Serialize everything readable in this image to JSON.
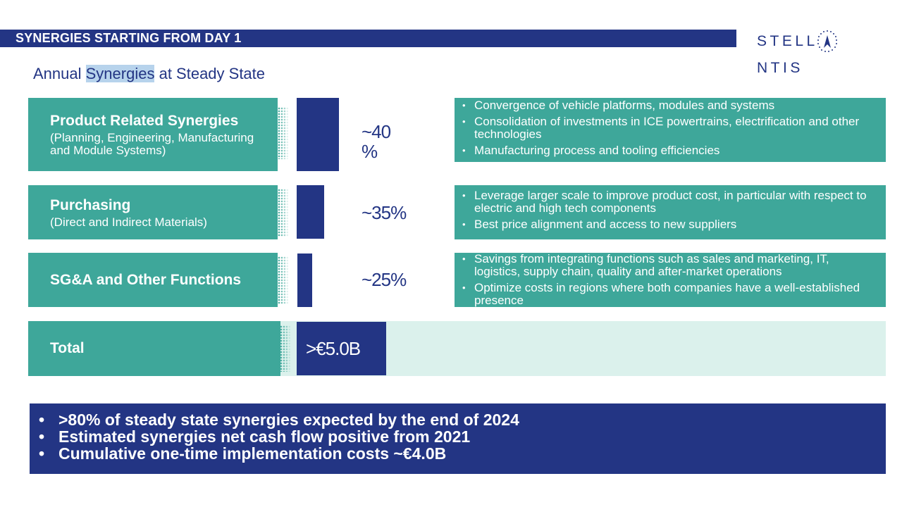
{
  "header": {
    "title": "SYNERGIES STARTING FROM DAY 1"
  },
  "logo": {
    "text_left": "STELL",
    "text_right": "NTIS",
    "icon": "stellantis-star-icon"
  },
  "subtitle": {
    "part1": "Annual ",
    "highlight": "Synergies",
    "part2": " at Steady State"
  },
  "rows": [
    {
      "label": "Product Related Synergies",
      "sublabel": "(Planning, Engineering, Manufacturing and Module Systems)",
      "percent": "~40 %",
      "share": 40,
      "bullets": [
        "Convergence of vehicle platforms, modules and systems",
        "Consolidation of investments in ICE powertrains, electrification and other technologies",
        "Manufacturing process and tooling efficiencies"
      ]
    },
    {
      "label": "Purchasing",
      "sublabel": "(Direct and Indirect Materials)",
      "percent": "~35%",
      "share": 35,
      "bullets": [
        "Leverage larger scale to improve product cost, in particular with respect to electric and high tech components",
        "Best price alignment and access to new suppliers"
      ]
    },
    {
      "label": "SG&A and Other Functions",
      "sublabel": "",
      "percent": "~25%",
      "share": 25,
      "bullets": [
        "Savings from integrating functions such as sales and marketing, IT, logistics, supply chain, quality and after-market operations",
        "Optimize costs in regions where both companies have a well-established presence"
      ]
    }
  ],
  "total": {
    "label": "Total",
    "value": ">€5.0B"
  },
  "footer": {
    "items": [
      ">80% of steady state synergies expected by the end of 2024",
      "Estimated synergies net cash flow positive from 2021",
      "Cumulative one-time implementation costs ~€4.0B"
    ]
  },
  "colors": {
    "navy": "#233584",
    "teal": "#3ea79a",
    "light_teal": "#dbf1ec",
    "highlight": "#b7d3ec"
  }
}
